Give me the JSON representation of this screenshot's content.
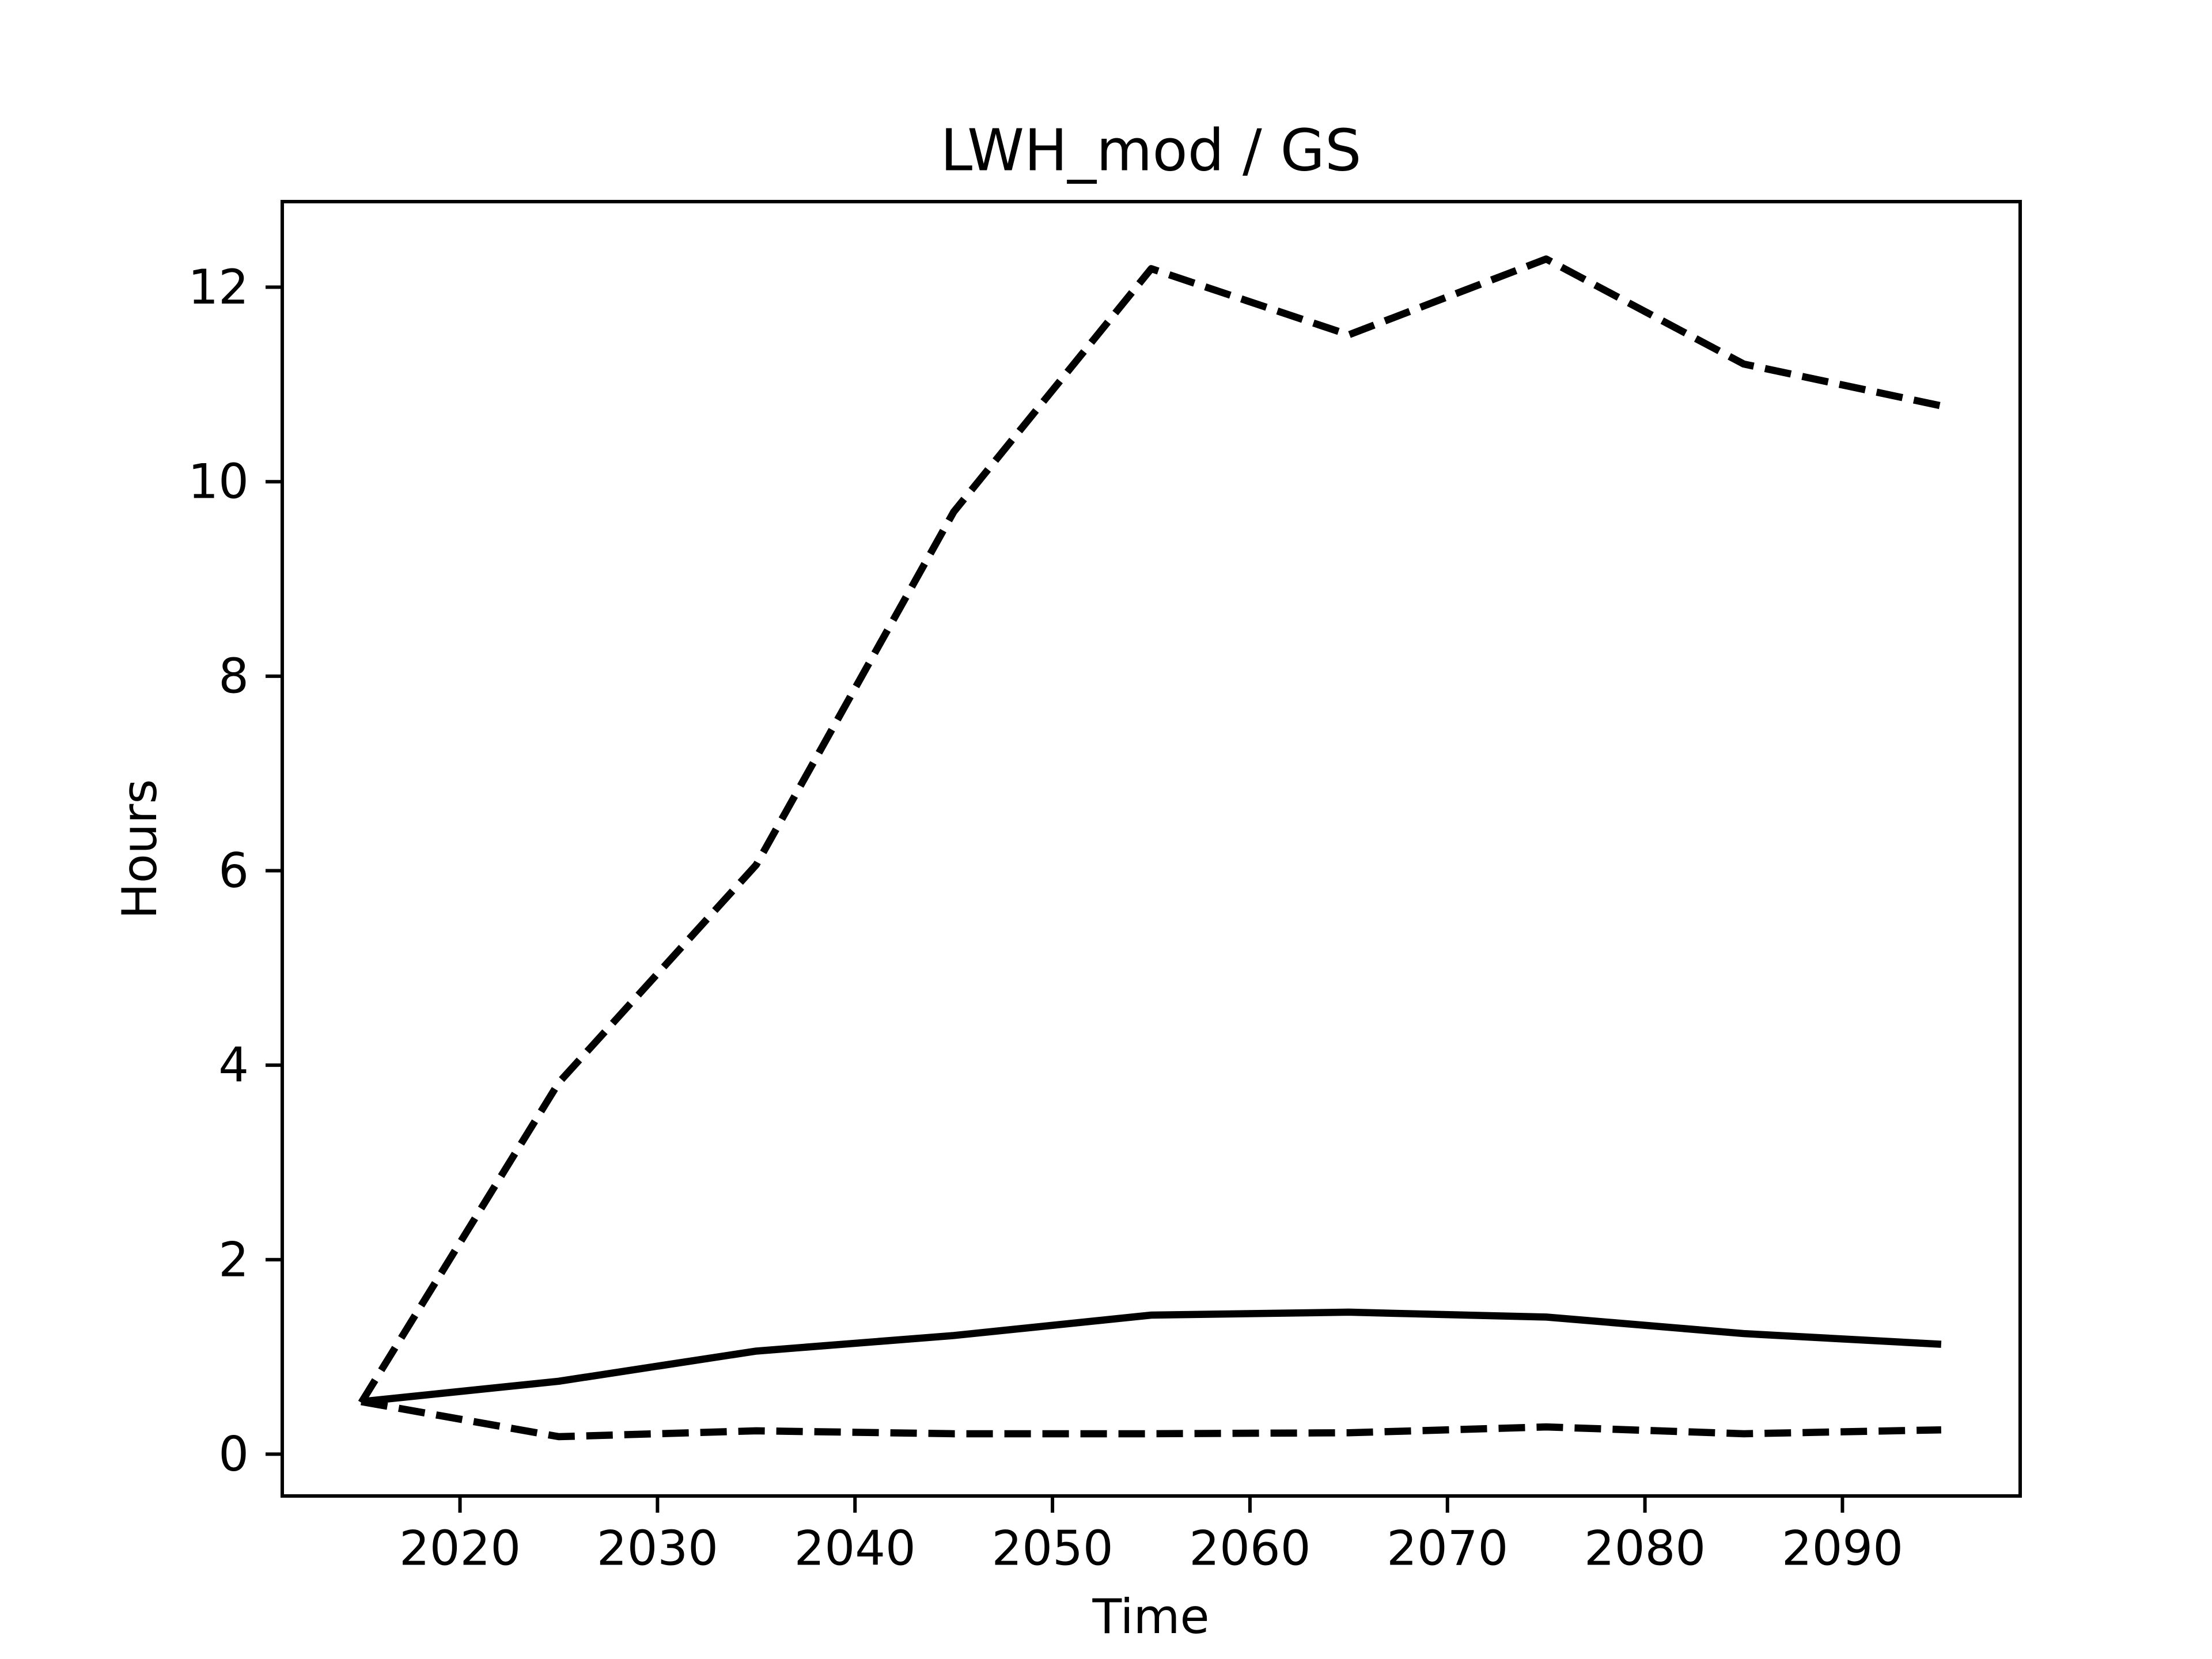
{
  "chart_data": {
    "type": "line",
    "title": "LWH_mod / GS",
    "xlabel": "Time",
    "ylabel": "Hours",
    "x": [
      2015,
      2025,
      2035,
      2045,
      2055,
      2065,
      2075,
      2085,
      2095
    ],
    "series": [
      {
        "color": "#000000",
        "linestyle": "dashed",
        "values": [
          0.53,
          3.82,
          6.06,
          9.69,
          12.19,
          11.51,
          12.29,
          11.21,
          10.78
        ]
      },
      {
        "color": "#000000",
        "linestyle": "solid",
        "values": [
          0.54,
          0.75,
          1.06,
          1.22,
          1.43,
          1.46,
          1.41,
          1.24,
          1.13
        ]
      },
      {
        "color": "#000000",
        "linestyle": "dashed",
        "values": [
          0.54,
          0.18,
          0.24,
          0.21,
          0.21,
          0.22,
          0.28,
          0.21,
          0.25
        ]
      }
    ],
    "xlim": [
      2011,
      2099
    ],
    "xticks": [
      2020,
      2030,
      2040,
      2050,
      2060,
      2070,
      2080,
      2090
    ],
    "ylim": [
      -0.43,
      12.88
    ],
    "yticks": [
      0,
      2,
      4,
      6,
      8,
      10,
      12
    ],
    "grid": false
  }
}
